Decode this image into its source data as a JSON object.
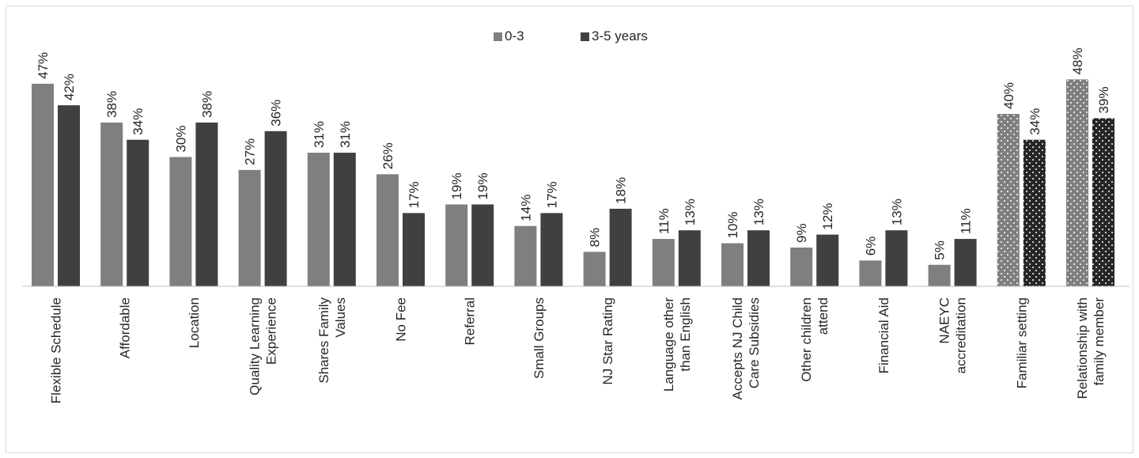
{
  "chart_data": {
    "type": "bar",
    "title": "",
    "xlabel": "",
    "ylabel": "",
    "ylim": [
      0,
      50
    ],
    "grid": false,
    "legend_position": "top-center",
    "categories": [
      "Flexible Schedule",
      "Affordable",
      "Location",
      "Quality Learning Experience",
      "Shares Family Values",
      "No Fee",
      "Referral",
      "Small Groups",
      "NJ Star Rating",
      "Language other than English",
      "Accepts NJ Child Care Subsidies",
      "Other children attend",
      "Financial Aid",
      "NAEYC accreditation",
      "Familiar setting",
      "Relationship with family member"
    ],
    "category_lines": [
      [
        "Flexible Schedule"
      ],
      [
        "Affordable"
      ],
      [
        "Location"
      ],
      [
        "Quality Learning",
        "Experience"
      ],
      [
        "Shares Family",
        "Values"
      ],
      [
        "No Fee"
      ],
      [
        "Referral"
      ],
      [
        "Small Groups"
      ],
      [
        "NJ Star Rating"
      ],
      [
        "Language other",
        "than English"
      ],
      [
        "Accepts NJ Child",
        "Care Subsidies"
      ],
      [
        "Other children",
        "attend"
      ],
      [
        "Financial Aid"
      ],
      [
        "NAEYC",
        "accreditation"
      ],
      [
        "Familiar setting"
      ],
      [
        "Relationship with",
        "family member"
      ]
    ],
    "dotted_categories": [
      14,
      15
    ],
    "series": [
      {
        "name": "0-3",
        "color": "#7f7f7f",
        "values": [
          47,
          38,
          30,
          27,
          31,
          26,
          19,
          14,
          8,
          11,
          10,
          9,
          6,
          5,
          40,
          48
        ],
        "labels": [
          "47%",
          "38%",
          "30%",
          "27%",
          "31%",
          "26%",
          "19%",
          "14%",
          "8%",
          "11%",
          "10%",
          "9%",
          "6%",
          "5%",
          "40%",
          "48%"
        ]
      },
      {
        "name": "3-5 years",
        "color": "#404040",
        "values": [
          42,
          34,
          38,
          36,
          31,
          17,
          19,
          17,
          18,
          13,
          13,
          12,
          13,
          11,
          34,
          39
        ],
        "labels": [
          "42%",
          "34%",
          "38%",
          "36%",
          "31%",
          "17%",
          "19%",
          "17%",
          "18%",
          "13%",
          "13%",
          "12%",
          "13%",
          "11%",
          "34%",
          "39%"
        ]
      }
    ]
  }
}
